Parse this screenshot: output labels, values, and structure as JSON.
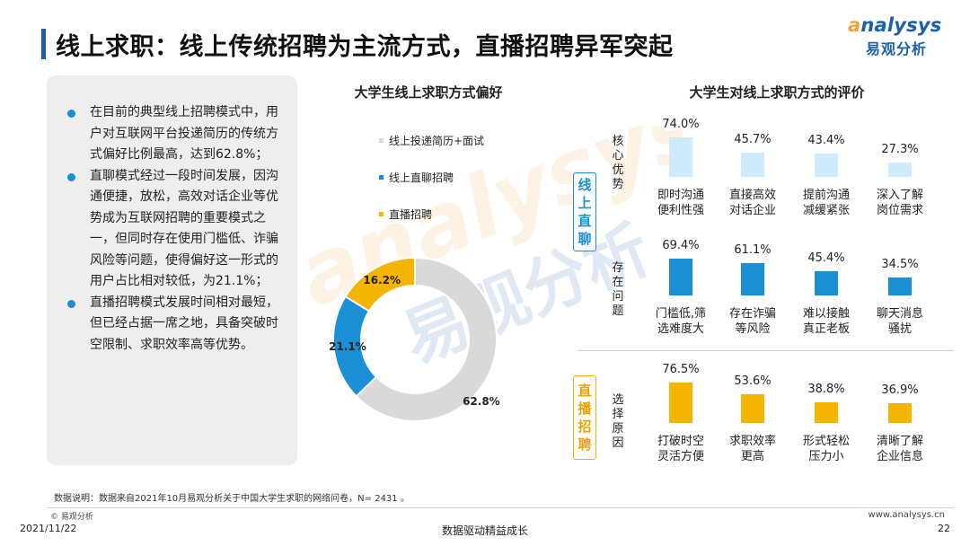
{
  "header": {
    "title": "线上求职：线上传统招聘为主流方式，直播招聘异军突起",
    "logo_word_a": "a",
    "logo_word_rest": "nalysys",
    "logo_cn": "易观分析"
  },
  "left_panel": {
    "bullets": [
      "在目前的典型线上招聘模式中，用户对互联网平台投递简历的传统方式偏好比例最高，达到62.8%；",
      "直聊模式经过一段时间发展，因沟通便捷，放松，高效对话企业等优势成为互联网招聘的重要模式之一，但同时存在使用门槛低、诈骗风险等问题，使得偏好这一形式的用户占比相对较低，为21.1%；",
      "直播招聘模式发展时间相对最短，但已经占据一席之地，具备突破时空限制、求职效率高等优势。"
    ]
  },
  "colors": {
    "accent_blue": "#1a8fd6",
    "donut_blue": "#1a8fd6",
    "donut_grey": "#d9d9d9",
    "donut_gold": "#f5b400",
    "bar_light_blue": "#cfeafc",
    "bar_blue": "#1a8fd6",
    "bar_gold": "#f5b400"
  },
  "chart_data": [
    {
      "type": "pie",
      "title": "大学生线上求职方式偏好",
      "categories": [
        "线上投递简历+面试",
        "线上直聊招聘",
        "直播招聘"
      ],
      "values": [
        62.8,
        21.1,
        16.2
      ],
      "value_labels": [
        "62.8%",
        "21.1%",
        "16.2%"
      ],
      "colors": [
        "#d9d9d9",
        "#1a8fd6",
        "#f5b400"
      ],
      "donut": true,
      "legend_position": "top-left"
    },
    {
      "type": "bar",
      "title": "大学生对线上求职方式的评价",
      "unit": "%",
      "ylim": [
        0,
        100
      ],
      "groups": [
        {
          "method": "线上直聊",
          "rows": [
            {
              "row_label": "核心优势",
              "style": "light",
              "categories": [
                "即时沟通便利性强",
                "直接高效对话企业",
                "提前沟通减缓紧张",
                "深入了解岗位需求"
              ],
              "category_lines": [
                [
                  "即时沟通",
                  "便利性强"
                ],
                [
                  "直接高效",
                  "对话企业"
                ],
                [
                  "提前沟通",
                  "减缓紧张"
                ],
                [
                  "深入了解",
                  "岗位需求"
                ]
              ],
              "values": [
                74.0,
                45.7,
                43.4,
                27.3
              ],
              "value_labels": [
                "74.0%",
                "45.7%",
                "43.4%",
                "27.3%"
              ]
            },
            {
              "row_label": "存在问题",
              "style": "blue",
              "categories": [
                "门槛低,筛选难度大",
                "存在诈骗等风险",
                "难以接触真正老板",
                "聊天消息骚扰"
              ],
              "category_lines": [
                [
                  "门槛低,筛",
                  "选难度大"
                ],
                [
                  "存在诈骗",
                  "等风险"
                ],
                [
                  "难以接触",
                  "真正老板"
                ],
                [
                  "聊天消息",
                  "骚扰"
                ]
              ],
              "values": [
                69.4,
                61.1,
                45.4,
                34.5
              ],
              "value_labels": [
                "69.4%",
                "61.1%",
                "45.4%",
                "34.5%"
              ]
            }
          ]
        },
        {
          "method": "直播招聘",
          "rows": [
            {
              "row_label": "选择原因",
              "style": "gold",
              "categories": [
                "打破时空灵活方便",
                "求职效率更高",
                "形式轻松压力小",
                "清晰了解企业信息"
              ],
              "category_lines": [
                [
                  "打破时空",
                  "灵活方便"
                ],
                [
                  "求职效率",
                  "更高"
                ],
                [
                  "形式轻松",
                  "压力小"
                ],
                [
                  "清晰了解",
                  "企业信息"
                ]
              ],
              "values": [
                76.5,
                53.6,
                38.8,
                36.9
              ],
              "value_labels": [
                "76.5%",
                "53.6%",
                "38.8%",
                "36.9%"
              ]
            }
          ]
        }
      ]
    }
  ],
  "footer": {
    "note": "数据说明：数据来自2021年10月易观分析关于中国大学生求职的网络问卷，N= 2431 。",
    "copyright": "© 易观分析",
    "website": "www.analysys.cn",
    "date": "2021/11/22",
    "slogan": "数据驱动精益成长",
    "page": "22"
  },
  "watermark": {
    "word": "analysys",
    "cn": "易观分析"
  }
}
